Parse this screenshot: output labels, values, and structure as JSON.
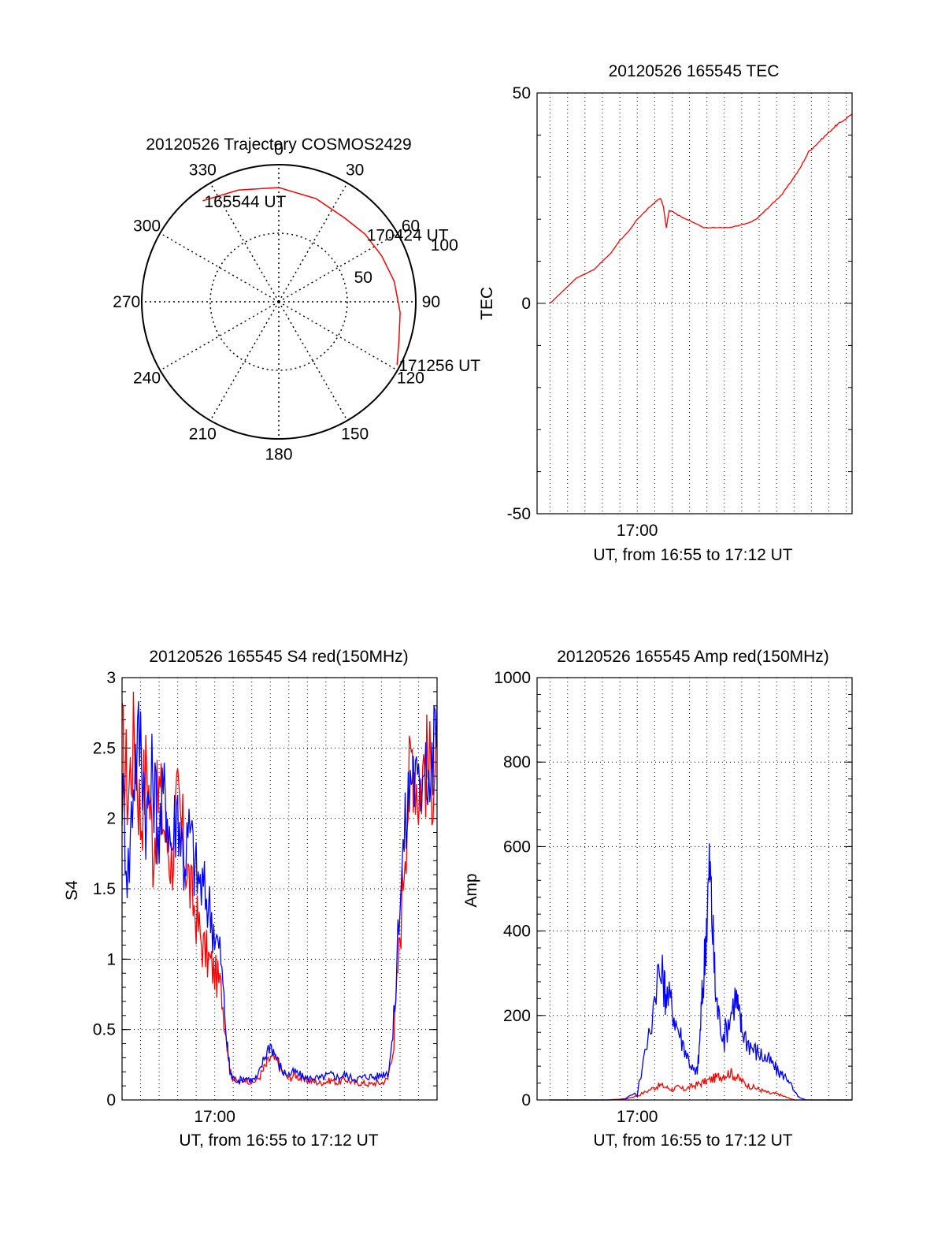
{
  "chart_data": [
    {
      "type": "polar",
      "title": "20120526 Trajectory COSMOS2429",
      "azimuth_labels": [
        "0",
        "30",
        "60",
        "90",
        "120",
        "150",
        "180",
        "210",
        "240",
        "270",
        "300",
        "330"
      ],
      "radius_labels": [
        "50",
        "100"
      ],
      "track": [
        {
          "az": 323,
          "zen": 83
        },
        {
          "az": 340,
          "zen": 78
        },
        {
          "az": 0,
          "zen": 75
        },
        {
          "az": 20,
          "zen": 72
        },
        {
          "az": 38,
          "zen": 70
        },
        {
          "az": 52,
          "zen": 72
        },
        {
          "az": 66,
          "zen": 74
        },
        {
          "az": 80,
          "zen": 77
        },
        {
          "az": 95,
          "zen": 80
        },
        {
          "az": 108,
          "zen": 83
        },
        {
          "az": 118,
          "zen": 88
        }
      ],
      "annotations": [
        {
          "text": "165544 UT",
          "az": 323,
          "zen": 83
        },
        {
          "text": "170424 UT",
          "az": 52,
          "zen": 72
        },
        {
          "text": "171256 UT",
          "az": 118,
          "zen": 88
        }
      ],
      "track_color": "#ff0000"
    },
    {
      "type": "line",
      "title": "20120526 165545 TEC",
      "xlabel": "UT, from 16:55 to 17:12 UT",
      "ylabel": "TEC",
      "x_tick_labels": [
        {
          "t": 300,
          "label": "17:00"
        }
      ],
      "xlim": [
        -45,
        1040
      ],
      "ylim": [
        -50,
        50
      ],
      "y_ticks": [
        -50,
        0,
        50
      ],
      "color": "#ff0000",
      "series": [
        {
          "values": [
            [
              0,
              0
            ],
            [
              30,
              2
            ],
            [
              60,
              4
            ],
            [
              90,
              6
            ],
            [
              120,
              7
            ],
            [
              150,
              8
            ],
            [
              180,
              10
            ],
            [
              210,
              12
            ],
            [
              240,
              15
            ],
            [
              270,
              17
            ],
            [
              300,
              20
            ],
            [
              330,
              22
            ],
            [
              360,
              24
            ],
            [
              380,
              25
            ],
            [
              390,
              23
            ],
            [
              400,
              18
            ],
            [
              410,
              22
            ],
            [
              420,
              22
            ],
            [
              440,
              21
            ],
            [
              470,
              20
            ],
            [
              500,
              19
            ],
            [
              530,
              18
            ],
            [
              560,
              18
            ],
            [
              590,
              18
            ],
            [
              620,
              18
            ],
            [
              650,
              18.5
            ],
            [
              680,
              19
            ],
            [
              710,
              20
            ],
            [
              740,
              22
            ],
            [
              770,
              24
            ],
            [
              800,
              26
            ],
            [
              830,
              29
            ],
            [
              860,
              32
            ],
            [
              890,
              36
            ],
            [
              920,
              38
            ],
            [
              950,
              40
            ],
            [
              980,
              42
            ],
            [
              1000,
              43
            ],
            [
              1040,
              45
            ]
          ]
        }
      ]
    },
    {
      "type": "line",
      "title": "20120526 165545 S4 red(150MHz)",
      "xlabel": "UT, from 16:55 to 17:12 UT",
      "ylabel": "S4",
      "x_tick_labels": [
        {
          "t": 300,
          "label": "17:00"
        }
      ],
      "xlim": [
        0,
        1020
      ],
      "ylim": [
        0,
        3
      ],
      "y_ticks": [
        0,
        0.5,
        1,
        1.5,
        2,
        2.5,
        3
      ],
      "series": [
        {
          "color": "#ff0000",
          "values": [
            [
              0,
              2.5
            ],
            [
              20,
              2.2
            ],
            [
              40,
              2.6
            ],
            [
              60,
              2.0
            ],
            [
              80,
              2.4
            ],
            [
              100,
              1.8
            ],
            [
              120,
              2.2
            ],
            [
              140,
              1.9
            ],
            [
              160,
              1.7
            ],
            [
              180,
              2.1
            ],
            [
              200,
              1.8
            ],
            [
              220,
              1.5
            ],
            [
              240,
              1.3
            ],
            [
              260,
              1.1
            ],
            [
              280,
              1.0
            ],
            [
              300,
              0.9
            ],
            [
              320,
              0.8
            ],
            [
              340,
              0.4
            ],
            [
              350,
              0.2
            ],
            [
              360,
              0.15
            ],
            [
              380,
              0.12
            ],
            [
              400,
              0.15
            ],
            [
              420,
              0.12
            ],
            [
              440,
              0.15
            ],
            [
              460,
              0.22
            ],
            [
              480,
              0.3
            ],
            [
              500,
              0.28
            ],
            [
              520,
              0.2
            ],
            [
              540,
              0.15
            ],
            [
              560,
              0.18
            ],
            [
              580,
              0.15
            ],
            [
              600,
              0.14
            ],
            [
              620,
              0.13
            ],
            [
              640,
              0.12
            ],
            [
              660,
              0.13
            ],
            [
              680,
              0.14
            ],
            [
              700,
              0.12
            ],
            [
              720,
              0.15
            ],
            [
              740,
              0.13
            ],
            [
              760,
              0.12
            ],
            [
              780,
              0.12
            ],
            [
              800,
              0.11
            ],
            [
              820,
              0.12
            ],
            [
              840,
              0.12
            ],
            [
              860,
              0.15
            ],
            [
              880,
              0.4
            ],
            [
              900,
              1.2
            ],
            [
              920,
              2.0
            ],
            [
              940,
              2.5
            ],
            [
              960,
              2.2
            ],
            [
              980,
              2.4
            ],
            [
              1000,
              2.3
            ],
            [
              1020,
              2.5
            ]
          ]
        },
        {
          "color": "#0000ff",
          "values": [
            [
              0,
              2.2
            ],
            [
              20,
              1.6
            ],
            [
              40,
              2.4
            ],
            [
              60,
              2.6
            ],
            [
              80,
              2.0
            ],
            [
              100,
              2.3
            ],
            [
              120,
              1.9
            ],
            [
              140,
              2.2
            ],
            [
              160,
              1.8
            ],
            [
              180,
              2.1
            ],
            [
              200,
              1.7
            ],
            [
              220,
              1.9
            ],
            [
              240,
              1.6
            ],
            [
              260,
              1.5
            ],
            [
              280,
              1.4
            ],
            [
              300,
              1.2
            ],
            [
              320,
              1.0
            ],
            [
              340,
              0.4
            ],
            [
              350,
              0.2
            ],
            [
              360,
              0.15
            ],
            [
              380,
              0.14
            ],
            [
              400,
              0.16
            ],
            [
              420,
              0.14
            ],
            [
              440,
              0.16
            ],
            [
              460,
              0.3
            ],
            [
              480,
              0.4
            ],
            [
              500,
              0.3
            ],
            [
              520,
              0.2
            ],
            [
              540,
              0.18
            ],
            [
              560,
              0.2
            ],
            [
              580,
              0.17
            ],
            [
              600,
              0.15
            ],
            [
              620,
              0.16
            ],
            [
              640,
              0.15
            ],
            [
              660,
              0.17
            ],
            [
              680,
              0.18
            ],
            [
              700,
              0.16
            ],
            [
              720,
              0.18
            ],
            [
              740,
              0.16
            ],
            [
              760,
              0.15
            ],
            [
              780,
              0.16
            ],
            [
              800,
              0.17
            ],
            [
              820,
              0.16
            ],
            [
              840,
              0.18
            ],
            [
              860,
              0.2
            ],
            [
              880,
              0.5
            ],
            [
              900,
              1.5
            ],
            [
              920,
              2.0
            ],
            [
              940,
              2.4
            ],
            [
              960,
              2.1
            ],
            [
              980,
              2.6
            ],
            [
              1000,
              2.2
            ],
            [
              1020,
              2.8
            ]
          ]
        }
      ]
    },
    {
      "type": "line",
      "title": "20120526 165545 Amp red(150MHz)",
      "xlabel": "UT, from 16:55 to 17:12 UT",
      "ylabel": "Amp",
      "x_tick_labels": [
        {
          "t": 300,
          "label": "17:00"
        }
      ],
      "xlim": [
        -45,
        1040
      ],
      "ylim": [
        0,
        1000
      ],
      "y_ticks": [
        0,
        200,
        400,
        600,
        800,
        1000
      ],
      "series": [
        {
          "color": "#ff0000",
          "values": [
            [
              0,
              0
            ],
            [
              200,
              0
            ],
            [
              260,
              3
            ],
            [
              300,
              10
            ],
            [
              330,
              20
            ],
            [
              360,
              30
            ],
            [
              380,
              35
            ],
            [
              400,
              30
            ],
            [
              420,
              25
            ],
            [
              440,
              30
            ],
            [
              460,
              25
            ],
            [
              480,
              30
            ],
            [
              500,
              35
            ],
            [
              520,
              40
            ],
            [
              540,
              45
            ],
            [
              560,
              50
            ],
            [
              580,
              55
            ],
            [
              600,
              60
            ],
            [
              620,
              65
            ],
            [
              640,
              55
            ],
            [
              660,
              45
            ],
            [
              680,
              35
            ],
            [
              700,
              30
            ],
            [
              720,
              25
            ],
            [
              740,
              20
            ],
            [
              760,
              15
            ],
            [
              780,
              15
            ],
            [
              800,
              10
            ],
            [
              820,
              5
            ],
            [
              840,
              0
            ],
            [
              1040,
              0
            ]
          ]
        },
        {
          "color": "#0000ff",
          "values": [
            [
              0,
              0
            ],
            [
              250,
              0
            ],
            [
              300,
              20
            ],
            [
              340,
              150
            ],
            [
              370,
              300
            ],
            [
              390,
              280
            ],
            [
              400,
              250
            ],
            [
              420,
              220
            ],
            [
              440,
              170
            ],
            [
              460,
              130
            ],
            [
              480,
              90
            ],
            [
              500,
              60
            ],
            [
              510,
              80
            ],
            [
              520,
              200
            ],
            [
              530,
              300
            ],
            [
              540,
              450
            ],
            [
              550,
              550
            ],
            [
              560,
              400
            ],
            [
              570,
              250
            ],
            [
              580,
              200
            ],
            [
              600,
              150
            ],
            [
              620,
              200
            ],
            [
              640,
              250
            ],
            [
              650,
              200
            ],
            [
              660,
              170
            ],
            [
              680,
              140
            ],
            [
              700,
              120
            ],
            [
              720,
              110
            ],
            [
              740,
              100
            ],
            [
              760,
              90
            ],
            [
              780,
              70
            ],
            [
              800,
              60
            ],
            [
              820,
              50
            ],
            [
              840,
              20
            ],
            [
              860,
              5
            ],
            [
              880,
              0
            ],
            [
              1040,
              0
            ]
          ]
        }
      ]
    }
  ]
}
